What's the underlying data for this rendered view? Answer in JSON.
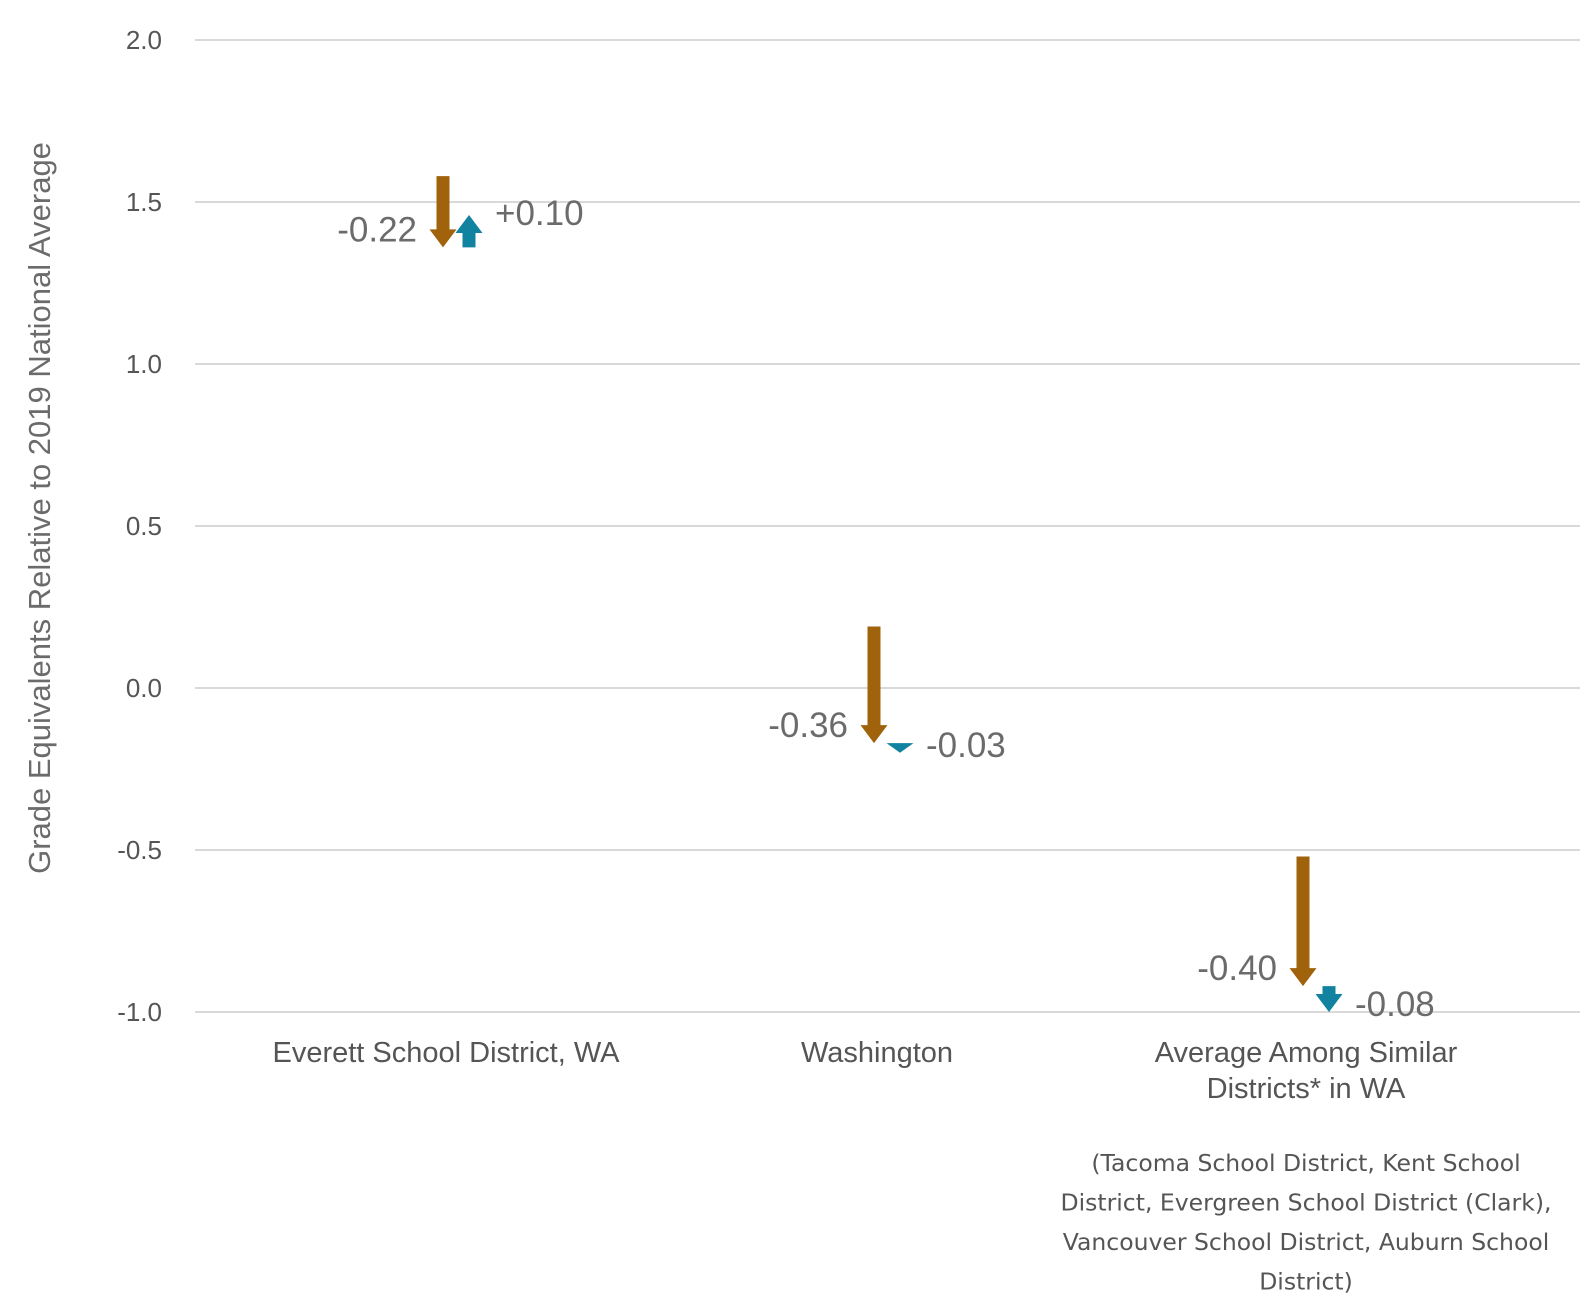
{
  "chart_data": {
    "type": "arrow",
    "ylabel": "Grade Equivalents Relative to 2019 National Average",
    "ylim": [
      -1.0,
      2.0
    ],
    "yticks": [
      "2.0",
      "1.5",
      "1.0",
      "0.5",
      "0.0",
      "-0.5",
      "-1.0"
    ],
    "ytick_values": [
      2.0,
      1.5,
      1.0,
      0.5,
      0.0,
      -0.5,
      -1.0
    ],
    "grid": true,
    "categories": [
      {
        "label_lines": [
          "Everett School District, WA"
        ],
        "note_lines": [],
        "first_change": {
          "from": 1.58,
          "to": 1.36,
          "label": "-0.22",
          "color": "#a0620a"
        },
        "second_change": {
          "from": 1.36,
          "to": 1.46,
          "label": "+0.10",
          "color": "#11829f"
        }
      },
      {
        "label_lines": [
          "Washington"
        ],
        "note_lines": [],
        "first_change": {
          "from": 0.19,
          "to": -0.17,
          "label": "-0.36",
          "color": "#a0620a"
        },
        "second_change": {
          "from": -0.17,
          "to": -0.2,
          "label": "-0.03",
          "color": "#11829f"
        }
      },
      {
        "label_lines": [
          "Average Among Similar",
          "Districts* in WA"
        ],
        "note_lines": [
          "(Tacoma School District, Kent School",
          "District, Evergreen School District (Clark),",
          "Vancouver School District, Auburn School",
          "District)"
        ],
        "first_change": {
          "from": -0.52,
          "to": -0.92,
          "label": "-0.40",
          "color": "#a0620a"
        },
        "second_change": {
          "from": -0.92,
          "to": -1.0,
          "label": "-0.08",
          "color": "#11829f"
        }
      }
    ]
  }
}
